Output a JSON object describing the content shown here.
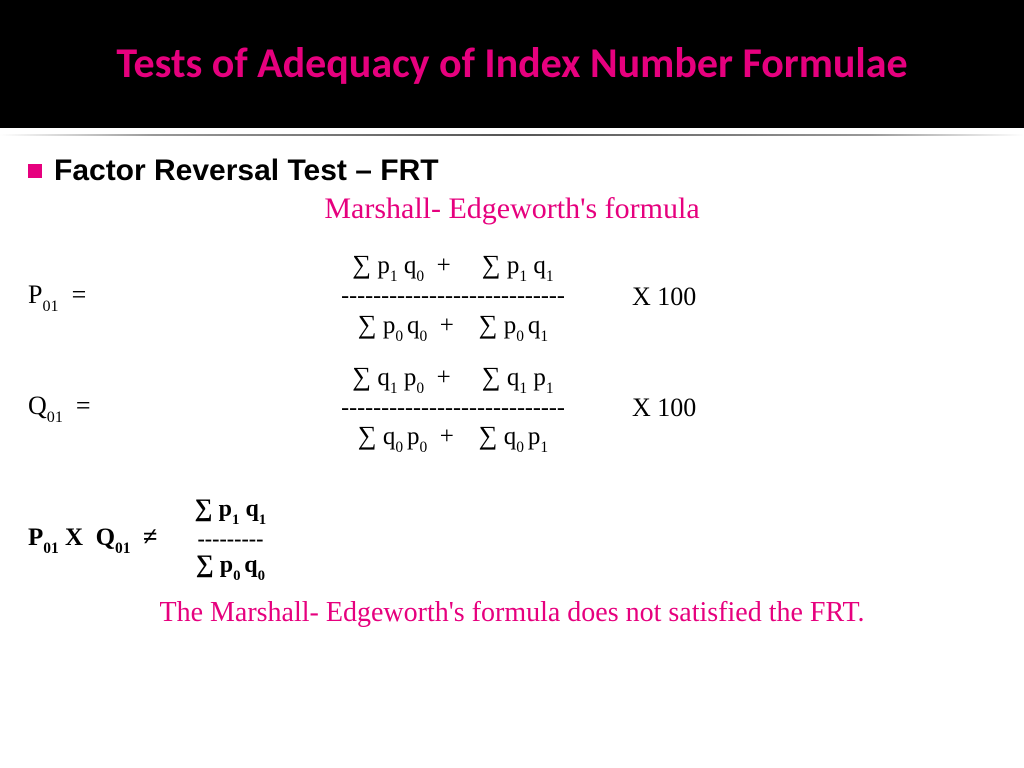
{
  "header": {
    "title": "Tests of Adequacy of Index Number Formulae",
    "title_color": "#e6007e",
    "bg_color": "#000000"
  },
  "bullet": {
    "square_color": "#e6007e",
    "text": "Factor Reversal Test – FRT"
  },
  "subtitle": {
    "text": "Marshall- Edgeworth's formula",
    "color": "#e6007e"
  },
  "formula_p": {
    "lhs": "P₀₁  =",
    "numerator": "∑ p₁ q₀  +     ∑ p₁ q₁",
    "dash": "----------------------------",
    "denominator": "∑ p₀ q₀  +    ∑ p₀ q₁",
    "tail": "X   100"
  },
  "formula_q": {
    "lhs": "Q₀₁  =",
    "numerator": "∑ q₁ p₀  +     ∑ q₁ p₁",
    "dash": "----------------------------",
    "denominator": "∑ q₀ p₀  +    ∑ q₀ p₁",
    "tail": "X   100"
  },
  "result": {
    "lhs": "P₀₁ X  Q₀₁  ≠",
    "numerator": "∑ p₁ q₁",
    "dash": "---------",
    "denominator": "∑ p₀ q₀"
  },
  "conclusion": {
    "text": "The Marshall- Edgeworth's formula does not satisfied the FRT.",
    "color": "#e6007e"
  }
}
